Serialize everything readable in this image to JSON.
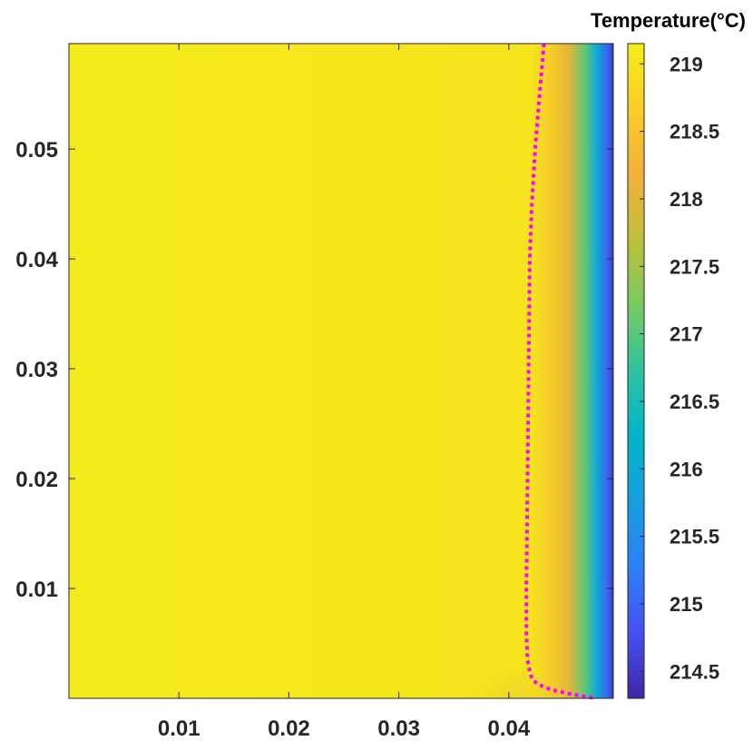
{
  "chart_data": {
    "type": "heatmap",
    "title": "",
    "xlabel": "",
    "ylabel": "",
    "xlim": [
      0,
      0.0495
    ],
    "ylim": [
      0,
      0.0596
    ],
    "x_ticks": [
      {
        "value": 0.01,
        "label": "0.01"
      },
      {
        "value": 0.02,
        "label": "0.02"
      },
      {
        "value": 0.03,
        "label": "0.03"
      },
      {
        "value": 0.04,
        "label": "0.04"
      }
    ],
    "y_ticks": [
      {
        "value": 0.01,
        "label": "0.01"
      },
      {
        "value": 0.02,
        "label": "0.02"
      },
      {
        "value": 0.03,
        "label": "0.03"
      },
      {
        "value": 0.04,
        "label": "0.04"
      },
      {
        "value": 0.05,
        "label": "0.05"
      }
    ],
    "colorbar": {
      "title": "Temperature(°C)",
      "range": [
        214.3,
        219.15
      ],
      "ticks": [
        {
          "value": 214.5,
          "label": "214.5"
        },
        {
          "value": 215,
          "label": "215"
        },
        {
          "value": 215.5,
          "label": "215.5"
        },
        {
          "value": 216,
          "label": "216"
        },
        {
          "value": 216.5,
          "label": "216.5"
        },
        {
          "value": 217,
          "label": "217"
        },
        {
          "value": 217.5,
          "label": "217.5"
        },
        {
          "value": 218,
          "label": "218"
        },
        {
          "value": 218.5,
          "label": "218.5"
        },
        {
          "value": 219,
          "label": "219"
        }
      ],
      "colormap": "parula"
    },
    "temperature_profile_x": {
      "x": [
        0,
        0.042,
        0.044,
        0.0455,
        0.047,
        0.048,
        0.049,
        0.0495
      ],
      "temperature": [
        219.1,
        219.0,
        218.6,
        218.0,
        217.0,
        216.0,
        215.0,
        214.5
      ]
    },
    "boundary_curve": {
      "color": "#ff00ff",
      "style": "dotted",
      "x": [
        0.0432,
        0.0428,
        0.0424,
        0.0421,
        0.0419,
        0.0418,
        0.0417,
        0.0416,
        0.0416,
        0.0417,
        0.0419,
        0.0421,
        0.0426,
        0.0438,
        0.0456,
        0.0479
      ],
      "y": [
        0.0596,
        0.055,
        0.05,
        0.045,
        0.04,
        0.03,
        0.02,
        0.01,
        0.006,
        0.0035,
        0.0025,
        0.0018,
        0.0013,
        0.0008,
        0.0004,
        0.0
      ]
    }
  }
}
